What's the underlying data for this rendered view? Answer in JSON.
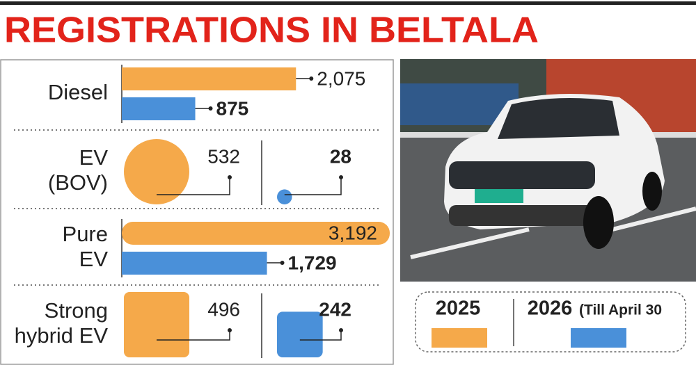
{
  "chart_data": {
    "type": "infographic",
    "title": "REGISTRATIONS IN BELTALA",
    "categories": [
      [
        "Diesel"
      ],
      [
        "EV",
        "(BOV)"
      ],
      [
        "Pure",
        "EV"
      ],
      [
        "Strong",
        "hybrid EV"
      ]
    ],
    "shapes": [
      "bar",
      "circle",
      "bar",
      "square"
    ],
    "series": [
      {
        "name": "2025",
        "color": "#f5a94a",
        "values": [
          2075,
          532,
          3192,
          496
        ],
        "value_labels": [
          "2,075",
          "532",
          "3,192",
          "496"
        ]
      },
      {
        "name": "2026",
        "color": "#4a90d9",
        "values": [
          875,
          28,
          1729,
          242
        ],
        "value_labels": [
          "875",
          "28",
          "1,729",
          "242"
        ]
      }
    ],
    "legend_note": "(Till April 30"
  }
}
